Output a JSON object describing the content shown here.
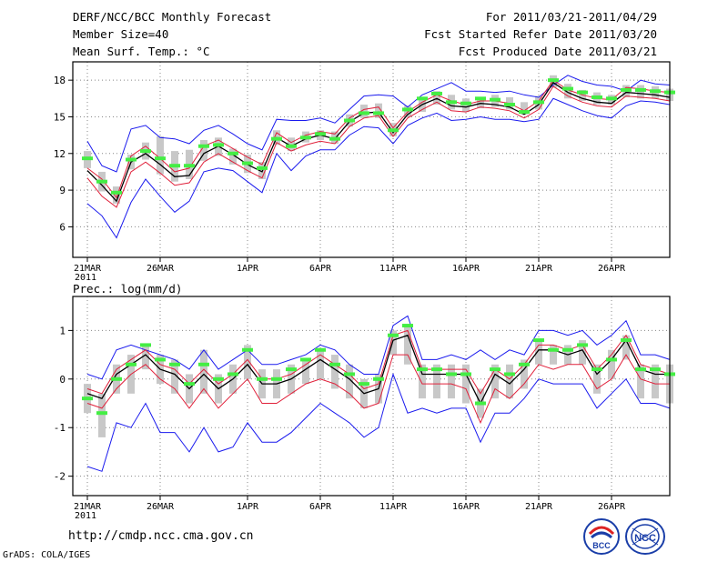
{
  "header": {
    "title": "DERF/NCC/BCC Monthly Forecast",
    "member_size": "Member Size=40",
    "variable": "Mean Surf. Temp.: °C",
    "period": "For 2011/03/21-2011/04/29",
    "started": "Fcst Started Refer Date 2011/03/20",
    "produced": "Fcst Produced Date 2011/03/21"
  },
  "footer": {
    "url": "http://cmdp.ncc.cma.gov.cn",
    "grads": "GrADS: COLA/IGES",
    "logo_bcc": "BCC",
    "logo_ncc": "NCC"
  },
  "colors": {
    "ensemble_mean": "#000000",
    "spread": "#e0203a",
    "extremes": "#1a1aee",
    "box": "#c8c8c8",
    "observed": "#44ee44",
    "grid": "#888888"
  },
  "chart_data": [
    {
      "type": "line",
      "title": "Mean Surf. Temp.: °C",
      "xlabel": "",
      "ylabel": "°C",
      "ylim": [
        3.5,
        19.5
      ],
      "yticks": [
        6,
        9,
        12,
        15,
        18
      ],
      "x_start_day": 1,
      "x_end_day": 40,
      "xticks": [
        {
          "day": 1,
          "label": "21MAR",
          "sublabel": "2011"
        },
        {
          "day": 6,
          "label": "26MAR"
        },
        {
          "day": 12,
          "label": "1APR"
        },
        {
          "day": 17,
          "label": "6APR"
        },
        {
          "day": 22,
          "label": "11APR"
        },
        {
          "day": 27,
          "label": "16APR"
        },
        {
          "day": 32,
          "label": "21APR"
        },
        {
          "day": 37,
          "label": "26APR"
        }
      ],
      "series": [
        {
          "name": "ensemble max",
          "values": [
            13.0,
            11.0,
            10.5,
            14.0,
            14.3,
            13.3,
            13.2,
            12.8,
            13.9,
            14.3,
            13.6,
            12.8,
            12.3,
            14.8,
            14.7,
            14.7,
            14.9,
            14.5,
            15.6,
            16.7,
            16.8,
            16.7,
            15.8,
            16.8,
            17.3,
            17.8,
            17.1,
            17.1,
            17.0,
            17.1,
            16.8,
            16.6,
            17.6,
            18.4,
            17.9,
            17.6,
            17.5,
            17.1,
            18.0,
            17.7,
            17.6
          ]
        },
        {
          "name": "mean + sd",
          "values": [
            10.8,
            9.9,
            8.4,
            11.8,
            12.6,
            11.6,
            10.5,
            10.8,
            12.6,
            13.1,
            12.4,
            11.7,
            11.1,
            13.7,
            12.9,
            13.5,
            13.8,
            13.6,
            14.9,
            15.6,
            15.8,
            14.1,
            15.4,
            16.2,
            16.8,
            16.3,
            16.0,
            16.3,
            16.3,
            16.1,
            15.5,
            16.3,
            18.0,
            17.2,
            16.8,
            16.5,
            16.4,
            17.4,
            17.3,
            17.1,
            17.0
          ]
        },
        {
          "name": "ensemble mean",
          "values": [
            10.6,
            9.4,
            8.1,
            11.3,
            12.0,
            11.1,
            10.1,
            10.2,
            12.0,
            12.6,
            11.9,
            11.1,
            10.5,
            13.3,
            12.6,
            13.2,
            13.5,
            13.2,
            14.6,
            15.3,
            15.4,
            13.7,
            15.2,
            16.0,
            16.5,
            15.9,
            15.8,
            16.1,
            16.0,
            15.8,
            15.2,
            16.0,
            17.8,
            17.0,
            16.5,
            16.2,
            16.1,
            17.0,
            16.9,
            16.8,
            16.6
          ]
        },
        {
          "name": "mean - sd",
          "values": [
            10.0,
            8.5,
            7.6,
            10.5,
            11.3,
            10.4,
            9.4,
            9.6,
            11.3,
            12.0,
            11.3,
            10.6,
            10.0,
            12.9,
            12.2,
            12.7,
            13.0,
            12.8,
            14.2,
            14.9,
            15.1,
            13.4,
            14.9,
            15.6,
            16.2,
            15.5,
            15.4,
            15.8,
            15.7,
            15.5,
            14.9,
            15.6,
            17.5,
            16.7,
            16.2,
            15.9,
            15.8,
            16.7,
            16.6,
            16.5,
            16.3
          ]
        },
        {
          "name": "ensemble min",
          "values": [
            7.9,
            6.9,
            5.1,
            8.0,
            9.9,
            8.5,
            7.2,
            8.1,
            10.5,
            10.8,
            10.6,
            9.7,
            8.8,
            12.0,
            10.6,
            11.8,
            12.3,
            12.3,
            13.5,
            14.2,
            14.1,
            12.8,
            14.3,
            14.9,
            15.3,
            14.7,
            14.8,
            15.0,
            14.8,
            14.8,
            14.6,
            14.8,
            16.5,
            16.0,
            15.5,
            15.1,
            14.9,
            15.9,
            16.3,
            16.2,
            16.0
          ]
        },
        {
          "name": "observed",
          "values": [
            11.6,
            9.7,
            8.8,
            11.5,
            12.2,
            11.6,
            11.0,
            11.0,
            12.6,
            12.7,
            12.0,
            11.2,
            10.8,
            13.2,
            12.6,
            13.3,
            13.6,
            13.2,
            14.7,
            15.3,
            15.3,
            13.9,
            15.6,
            16.5,
            16.9,
            16.2,
            16.1,
            16.5,
            16.4,
            16.0,
            15.4,
            16.2,
            18.0,
            17.3,
            17.0,
            16.6,
            16.5,
            17.2,
            17.2,
            17.1,
            17.0
          ]
        },
        {
          "name": "box high",
          "values": [
            12.2,
            10.5,
            9.3,
            11.9,
            12.9,
            13.4,
            12.2,
            12.3,
            13.1,
            13.3,
            12.4,
            11.9,
            11.3,
            13.9,
            13.3,
            13.8,
            13.9,
            13.8,
            15.2,
            16.0,
            16.1,
            14.5,
            15.9,
            16.4,
            17.1,
            16.8,
            16.5,
            16.5,
            16.8,
            16.6,
            16.2,
            16.7,
            18.4,
            17.7,
            17.2,
            17.0,
            16.8,
            17.6,
            17.6,
            17.5,
            17.3
          ]
        },
        {
          "name": "box low",
          "values": [
            10.8,
            8.9,
            7.9,
            10.7,
            11.5,
            10.3,
            9.7,
            9.9,
            11.4,
            11.8,
            11.1,
            10.4,
            9.9,
            12.7,
            12.2,
            12.9,
            13.1,
            12.8,
            14.2,
            14.9,
            14.9,
            13.4,
            15.0,
            15.4,
            16.0,
            15.6,
            15.4,
            15.7,
            15.8,
            15.6,
            15.2,
            15.6,
            17.4,
            16.5,
            16.3,
            16.0,
            16.0,
            16.6,
            16.5,
            16.5,
            16.3
          ]
        }
      ]
    },
    {
      "type": "line",
      "title": "Prec.: log(mm/d)",
      "xlabel": "",
      "ylabel": "log(mm/d)",
      "ylim": [
        -2.4,
        1.7
      ],
      "yticks": [
        -2,
        -1,
        0,
        1
      ],
      "x_start_day": 1,
      "x_end_day": 40,
      "xticks": [
        {
          "day": 1,
          "label": "21MAR",
          "sublabel": "2011"
        },
        {
          "day": 6,
          "label": "26MAR"
        },
        {
          "day": 12,
          "label": "1APR"
        },
        {
          "day": 17,
          "label": "6APR"
        },
        {
          "day": 22,
          "label": "11APR"
        },
        {
          "day": 27,
          "label": "16APR"
        },
        {
          "day": 32,
          "label": "21APR"
        },
        {
          "day": 37,
          "label": "26APR"
        }
      ],
      "series": [
        {
          "name": "ensemble max",
          "values": [
            0.1,
            0.0,
            0.6,
            0.7,
            0.6,
            0.5,
            0.4,
            0.2,
            0.6,
            0.2,
            0.4,
            0.6,
            0.3,
            0.3,
            0.4,
            0.5,
            0.7,
            0.6,
            0.3,
            0.1,
            0.1,
            1.1,
            1.3,
            0.4,
            0.4,
            0.5,
            0.4,
            0.6,
            0.4,
            0.6,
            0.5,
            1.0,
            1.0,
            0.9,
            1.0,
            0.7,
            0.9,
            1.2,
            0.5,
            0.5,
            0.4
          ]
        },
        {
          "name": "mean + sd",
          "values": [
            -0.2,
            -0.3,
            0.2,
            0.4,
            0.6,
            0.3,
            0.2,
            -0.1,
            0.2,
            -0.1,
            0.1,
            0.4,
            0.0,
            0.0,
            0.1,
            0.3,
            0.5,
            0.3,
            0.1,
            -0.2,
            -0.1,
            0.9,
            1.0,
            0.2,
            0.2,
            0.2,
            0.2,
            -0.3,
            0.2,
            0.0,
            0.3,
            0.7,
            0.7,
            0.6,
            0.7,
            0.2,
            0.5,
            0.9,
            0.3,
            0.2,
            0.1
          ]
        },
        {
          "name": "ensemble mean",
          "values": [
            -0.3,
            -0.4,
            0.1,
            0.3,
            0.5,
            0.2,
            0.1,
            -0.2,
            0.1,
            -0.2,
            0.0,
            0.3,
            -0.1,
            -0.1,
            0.0,
            0.2,
            0.4,
            0.2,
            0.0,
            -0.3,
            -0.2,
            0.8,
            0.9,
            0.1,
            0.1,
            0.1,
            0.1,
            -0.5,
            0.1,
            -0.1,
            0.2,
            0.6,
            0.6,
            0.5,
            0.6,
            0.1,
            0.4,
            0.8,
            0.2,
            0.1,
            0.1
          ]
        },
        {
          "name": "mean - sd",
          "values": [
            -0.5,
            -0.6,
            -0.2,
            0.1,
            0.3,
            0.0,
            -0.2,
            -0.6,
            -0.2,
            -0.6,
            -0.3,
            0.0,
            -0.5,
            -0.5,
            -0.3,
            -0.1,
            0.0,
            -0.1,
            -0.3,
            -0.6,
            -0.5,
            0.5,
            0.5,
            -0.1,
            -0.1,
            -0.1,
            -0.2,
            -0.9,
            -0.2,
            -0.4,
            -0.1,
            0.3,
            0.2,
            0.3,
            0.3,
            -0.2,
            0.0,
            0.5,
            0.0,
            -0.1,
            -0.1
          ]
        },
        {
          "name": "ensemble min",
          "values": [
            -1.8,
            -1.9,
            -0.9,
            -1.0,
            -0.5,
            -1.1,
            -1.1,
            -1.5,
            -1.0,
            -1.5,
            -1.4,
            -0.9,
            -1.3,
            -1.3,
            -1.1,
            -0.8,
            -0.5,
            -0.7,
            -0.9,
            -1.2,
            -1.0,
            0.1,
            -0.7,
            -0.6,
            -0.7,
            -0.6,
            -0.6,
            -1.3,
            -0.7,
            -0.7,
            -0.4,
            0.0,
            -0.1,
            -0.1,
            -0.1,
            -0.6,
            -0.3,
            0.0,
            -0.5,
            -0.5,
            -0.6
          ]
        },
        {
          "name": "observed",
          "values": [
            -0.4,
            -0.7,
            0.0,
            0.3,
            0.7,
            0.4,
            0.3,
            -0.1,
            0.3,
            0.0,
            0.1,
            0.6,
            0.0,
            0.0,
            0.2,
            0.4,
            0.6,
            0.3,
            0.1,
            -0.1,
            0.0,
            0.9,
            1.1,
            0.2,
            0.2,
            0.1,
            0.1,
            -0.5,
            0.2,
            0.1,
            0.3,
            0.8,
            0.6,
            0.6,
            0.7,
            0.2,
            0.4,
            0.8,
            0.2,
            0.2,
            0.1
          ]
        },
        {
          "name": "box high",
          "values": [
            -0.1,
            -0.3,
            0.3,
            0.5,
            0.7,
            0.5,
            0.4,
            0.1,
            0.6,
            0.1,
            0.3,
            0.7,
            0.2,
            0.2,
            0.3,
            0.4,
            0.6,
            0.5,
            0.3,
            0.0,
            0.1,
            1.0,
            1.1,
            0.3,
            0.3,
            0.3,
            0.3,
            -0.2,
            0.3,
            0.3,
            0.4,
            0.8,
            0.7,
            0.7,
            0.8,
            0.3,
            0.6,
            0.9,
            0.3,
            0.3,
            0.3
          ]
        },
        {
          "name": "box low",
          "values": [
            -0.7,
            -1.2,
            -0.3,
            -0.3,
            0.2,
            -0.1,
            -0.3,
            -0.5,
            -0.3,
            -0.5,
            -0.3,
            0.0,
            -0.4,
            -0.4,
            -0.3,
            -0.1,
            0.0,
            -0.2,
            -0.4,
            -0.6,
            -0.5,
            0.5,
            0.3,
            -0.4,
            -0.4,
            -0.4,
            -0.5,
            -0.8,
            -0.4,
            -0.4,
            -0.2,
            0.3,
            0.3,
            0.3,
            0.3,
            -0.3,
            0.0,
            0.4,
            -0.4,
            -0.4,
            -0.5
          ]
        }
      ]
    }
  ]
}
